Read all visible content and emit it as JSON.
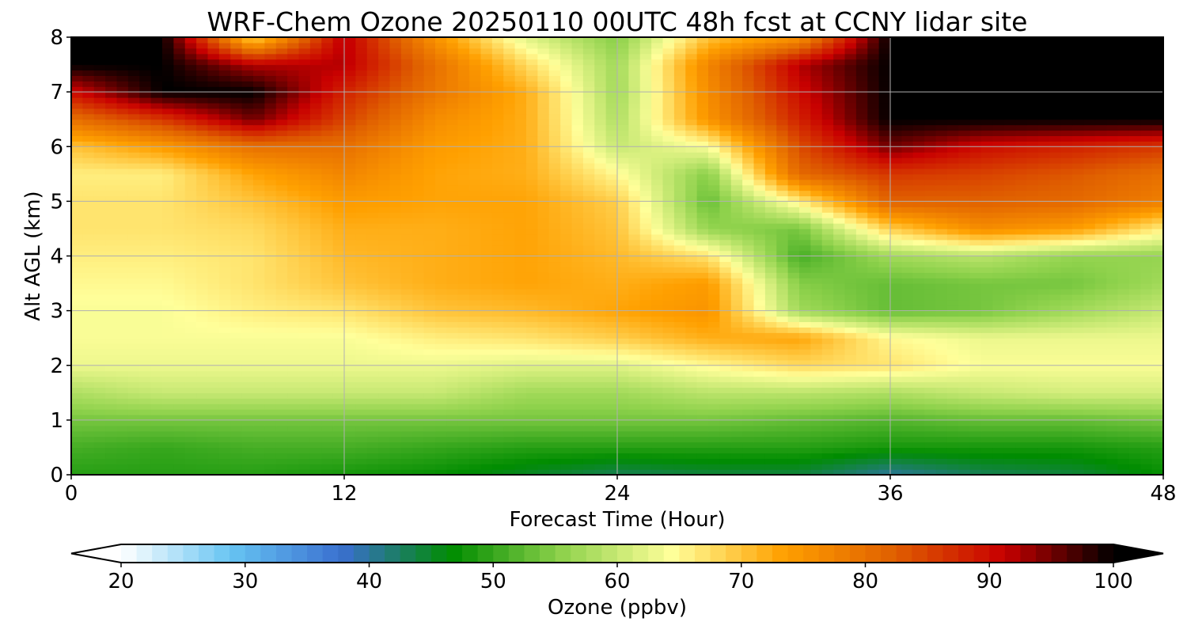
{
  "chart_data": {
    "type": "heatmap",
    "title": "WRF-Chem Ozone  20250110 00UTC 48h fcst at CCNY lidar site",
    "xlabel": "Forecast Time (Hour)",
    "ylabel": "Alt AGL (km)",
    "xlim": [
      0,
      48
    ],
    "ylim": [
      0,
      8
    ],
    "xticks": [
      0,
      12,
      24,
      36,
      48
    ],
    "yticks": [
      0,
      1,
      2,
      3,
      4,
      5,
      6,
      7,
      8
    ],
    "grid": true,
    "colorbar": {
      "label": "Ozone  (ppbv)",
      "min": 20,
      "max": 100,
      "ticks": [
        20,
        30,
        40,
        50,
        60,
        70,
        80,
        90,
        100
      ],
      "extend": "both",
      "colors": [
        "#ffffff",
        "#66c4f2",
        "#3a6fd0",
        "#008c00",
        "#8fd24c",
        "#ffff9a",
        "#ffa000",
        "#e06000",
        "#c80000",
        "#000000"
      ]
    },
    "time_hours": [
      0,
      4,
      8,
      12,
      16,
      20,
      24,
      28,
      32,
      36,
      40,
      44,
      48
    ],
    "altitude_km": [
      0,
      0.5,
      1,
      1.5,
      2,
      2.5,
      3,
      3.5,
      4,
      4.5,
      5,
      5.5,
      6,
      6.5,
      7,
      7.5,
      8
    ],
    "ozone_ppbv": [
      [
        49,
        49,
        49,
        48,
        47,
        45,
        43,
        44,
        44,
        40,
        43,
        44,
        47
      ],
      [
        51,
        50,
        51,
        51,
        50,
        49,
        49,
        49,
        49,
        48,
        48,
        48,
        49
      ],
      [
        54,
        54,
        54,
        54,
        54,
        54,
        54,
        54,
        53,
        52,
        53,
        53,
        54
      ],
      [
        58,
        60,
        60,
        60,
        60,
        57,
        57,
        59,
        59,
        58,
        60,
        61,
        61
      ],
      [
        63,
        63,
        63,
        63,
        63,
        62,
        62,
        65,
        68,
        67,
        64,
        64,
        64
      ],
      [
        64,
        64,
        64,
        64,
        66,
        67,
        69,
        72,
        73,
        65,
        63,
        63,
        63
      ],
      [
        64,
        64,
        66,
        67,
        70,
        71,
        73,
        75,
        57,
        53,
        54,
        57,
        60
      ],
      [
        65,
        65,
        67,
        70,
        72,
        73,
        72,
        74,
        55,
        53,
        54,
        54,
        57
      ],
      [
        66,
        66,
        67,
        71,
        72,
        73,
        71,
        67,
        51,
        57,
        59,
        56,
        56
      ],
      [
        67,
        67,
        68,
        72,
        72,
        73,
        70,
        56,
        54,
        69,
        76,
        74,
        66
      ],
      [
        67,
        67,
        70,
        74,
        73,
        73,
        69,
        53,
        66,
        82,
        82,
        81,
        78
      ],
      [
        66,
        66,
        73,
        77,
        73,
        72,
        65,
        55,
        81,
        86,
        85,
        83,
        80
      ],
      [
        70,
        74,
        80,
        80,
        74,
        72,
        60,
        64,
        84,
        95,
        90,
        88,
        86
      ],
      [
        80,
        86,
        95,
        85,
        76,
        72,
        58,
        75,
        88,
        100,
        100,
        100,
        100
      ],
      [
        90,
        100,
        100,
        88,
        79,
        72,
        57,
        76,
        90,
        100,
        100,
        100,
        100
      ],
      [
        100,
        100,
        92,
        92,
        80,
        68,
        57,
        77,
        92,
        100,
        100,
        100,
        100
      ],
      [
        100,
        100,
        68,
        92,
        75,
        62,
        55,
        70,
        75,
        100,
        100,
        100,
        100
      ]
    ]
  }
}
